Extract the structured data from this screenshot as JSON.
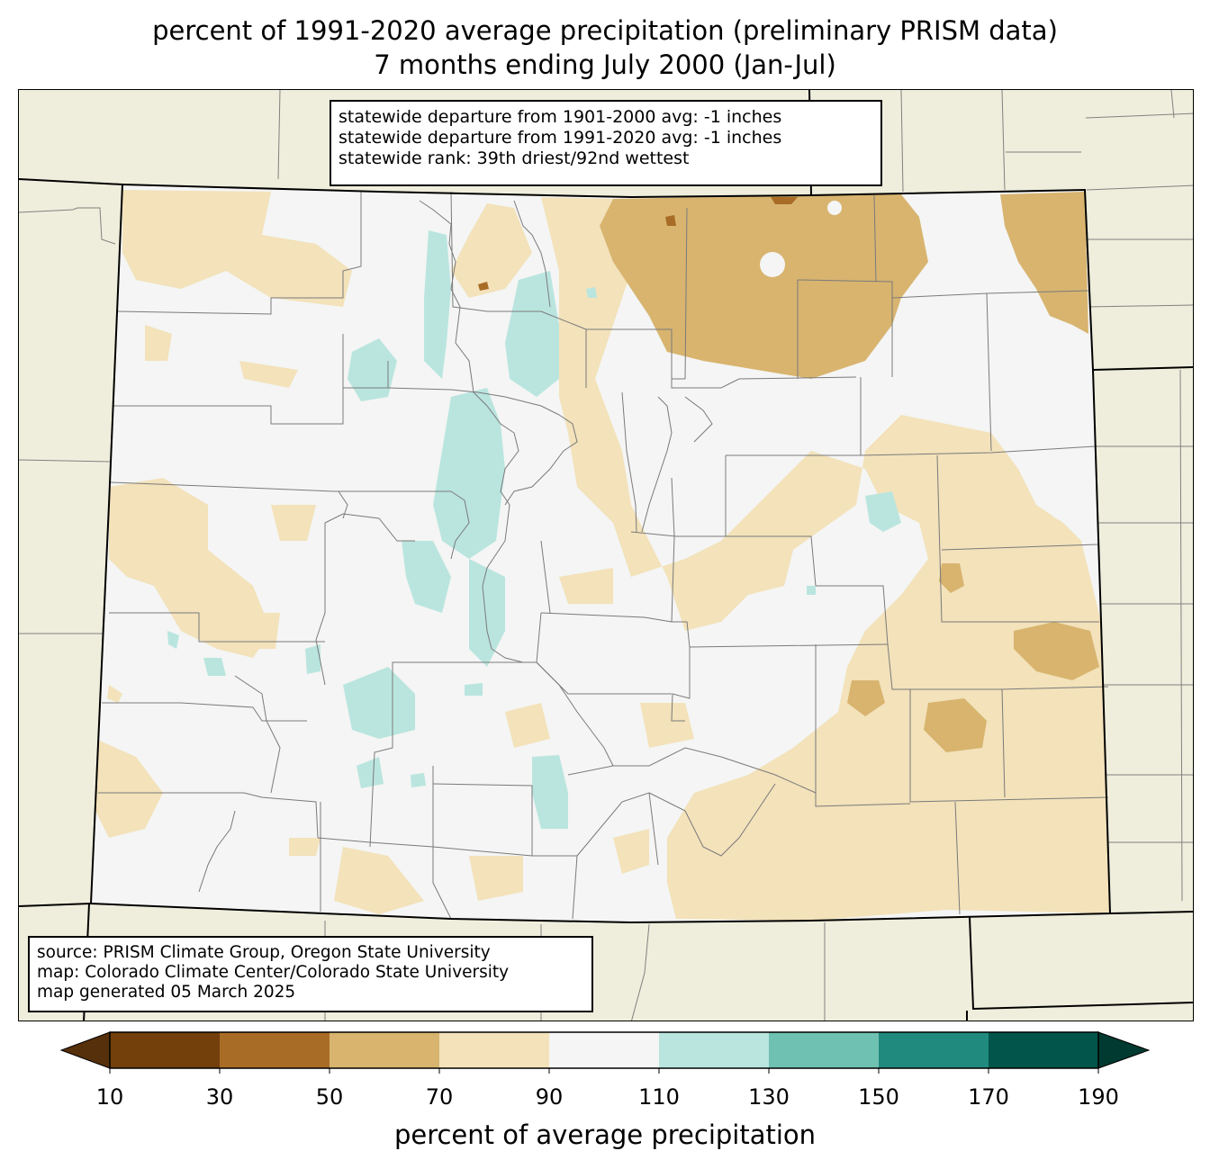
{
  "title": {
    "line1": "percent of 1991-2020 average precipitation (preliminary PRISM data)",
    "line2": "7 months ending July 2000 (Jan-Jul)"
  },
  "stats_box": {
    "line1": "statewide departure from 1901-2000 avg: -1 inches",
    "line2": "statewide departure from 1991-2020 avg: -1 inches",
    "line3": "statewide rank: 39th driest/92nd wettest"
  },
  "credits_box": {
    "line1": "source: PRISM Climate Group, Oregon State University",
    "line2": "map: Colorado Climate Center/Colorado State University",
    "line3": "map generated 05 March 2025"
  },
  "colorbar": {
    "label": "percent of average precipitation",
    "ticks": [
      "10",
      "30",
      "50",
      "70",
      "90",
      "110",
      "130",
      "150",
      "170",
      "190"
    ],
    "colors": [
      "#733f0b",
      "#a96c26",
      "#d8b46f",
      "#f3e2ba",
      "#f4f5f4",
      "#bae5df",
      "#6fc1b1",
      "#218a7e",
      "#01554a"
    ],
    "under_color": "#56300a",
    "over_color": "#003a30"
  },
  "map_colors": {
    "background": "#efeedc",
    "state_fill": "#f4f5f4"
  }
}
